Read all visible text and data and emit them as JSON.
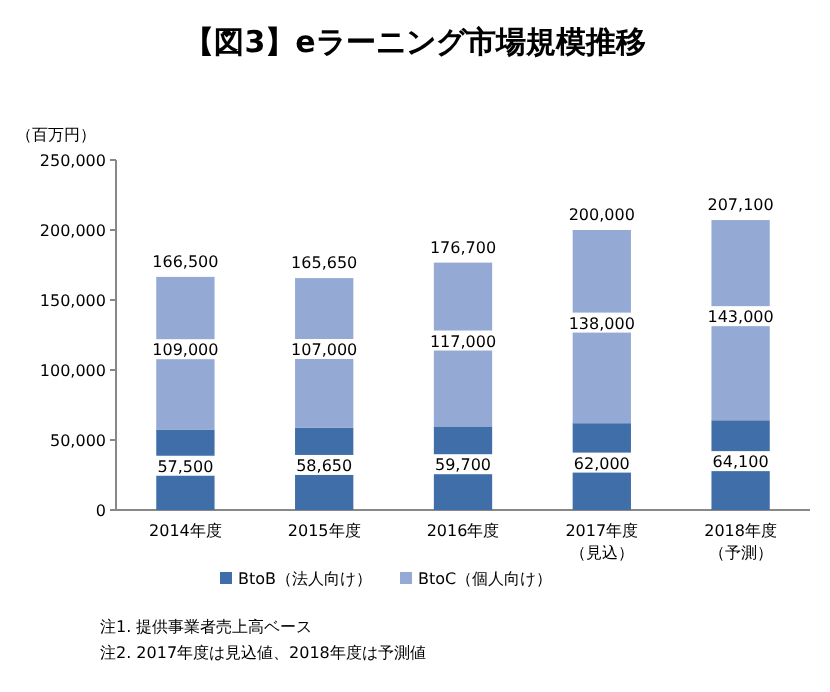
{
  "chart_data": {
    "type": "bar",
    "stacked": true,
    "title": "【図3】eラーニング市場規模推移",
    "ylabel": "（百万円）",
    "categories": [
      "2014年度",
      "2015年度",
      "2016年度",
      "2017年度（見込）",
      "2018年度（予測）"
    ],
    "series": [
      {
        "name": "BtoB（法人向け）",
        "color": "#3f6ea8",
        "values": [
          57500,
          58650,
          59700,
          62000,
          64100
        ],
        "value_labels": [
          "57,500",
          "58,650",
          "59,700",
          "62,000",
          "64,100"
        ]
      },
      {
        "name": "BtoC（個人向け）",
        "color": "#94a9d3",
        "values": [
          109000,
          107000,
          117000,
          138000,
          143000
        ],
        "value_labels": [
          "109,000",
          "107,000",
          "117,000",
          "138,000",
          "143,000"
        ]
      }
    ],
    "totals": [
      "166,500",
      "165,650",
      "176,700",
      "200,000",
      "207,100"
    ],
    "ylim": [
      0,
      250000
    ],
    "yticks": [
      0,
      {
        "value": 50000,
        "label": "50,000"
      },
      {
        "value": 100000,
        "label": "100,000"
      },
      {
        "value": 150000,
        "label": "150,000"
      },
      {
        "value": 200000,
        "label": "200,000"
      },
      {
        "value": 250000,
        "label": "250,000"
      }
    ],
    "grid": false,
    "legend": "bottom",
    "annotations": [
      "注1. 提供事業者売上高ベース",
      "注2. 2017年度は見込値、2018年度は予測値"
    ]
  }
}
